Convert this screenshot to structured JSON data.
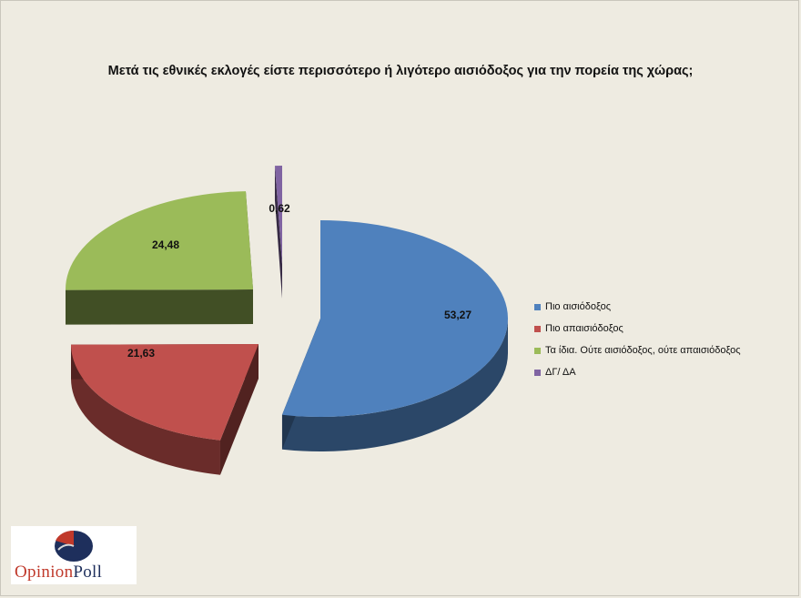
{
  "chart_data": {
    "type": "pie",
    "title": "Μετά τις εθνικές εκλογές είστε περισσότερο ή λιγότερο αισιόδοξος για την πορεία της χώρας;",
    "legend_position": "right",
    "slices": [
      {
        "name": "Πιο αισιόδοξος",
        "value": 53.27,
        "label": "53,27",
        "color": "#4f81bd"
      },
      {
        "name": "Πιο απαισιόδοξος",
        "value": 21.63,
        "label": "21,63",
        "color": "#c0504d"
      },
      {
        "name": "Τα ίδια. Ούτε αισιόδοξος, ούτε απαισιόδοξος",
        "value": 24.48,
        "label": "24,48",
        "color": "#9bbb59"
      },
      {
        "name": "ΔΓ/ ΔΑ",
        "value": 0.62,
        "label": "0,62",
        "color": "#8064a2"
      }
    ]
  },
  "logo": {
    "part1": "Opinion",
    "part2": "Poll"
  }
}
